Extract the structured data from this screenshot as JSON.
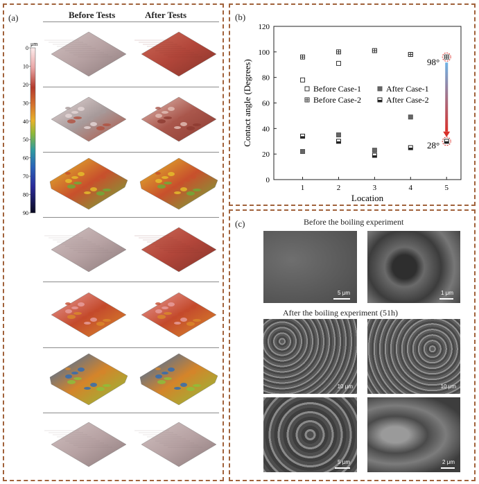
{
  "panel_a": {
    "label": "(a)",
    "col_before": "Before Tests",
    "col_after": "After Tests",
    "colorbar": {
      "unit": "μm",
      "ticks": [
        "0",
        "10",
        "20",
        "30",
        "40",
        "50",
        "60",
        "70",
        "80",
        "90"
      ]
    },
    "rows": [
      {
        "before": "flat",
        "after": "flat-red"
      },
      {
        "before": "bumpy-grey",
        "after": "bumpy-red"
      },
      {
        "before": "rough-yellow",
        "after": "rough-yellow"
      },
      {
        "before": "flat",
        "after": "flat-red"
      },
      {
        "before": "red-texture",
        "after": "red-texture"
      },
      {
        "before": "rough-blue",
        "after": "rough-blue"
      },
      {
        "before": "flat",
        "after": "flat"
      }
    ]
  },
  "panel_b": {
    "label": "(b)"
  },
  "chart_data": {
    "type": "scatter",
    "xlabel": "Location",
    "ylabel": "Contact angle (Degrees)",
    "xlim": [
      0.2,
      5.4
    ],
    "ylim": [
      0,
      120
    ],
    "xticks": [
      1,
      2,
      3,
      4,
      5
    ],
    "yticks": [
      0,
      20,
      40,
      60,
      80,
      100,
      120
    ],
    "legend_position": "center",
    "series": [
      {
        "name": "Before Case-1",
        "marker": "open-square",
        "x": [
          1,
          2,
          3,
          4
        ],
        "y": [
          78,
          91,
          101,
          98
        ]
      },
      {
        "name": "Before Case-2",
        "marker": "crossed-square",
        "x": [
          1,
          2,
          3,
          4,
          5
        ],
        "y": [
          96,
          100,
          101,
          98,
          96
        ]
      },
      {
        "name": "After Case-1",
        "marker": "filled-square",
        "x": [
          1,
          2,
          3,
          4
        ],
        "y": [
          22,
          35,
          23,
          49
        ]
      },
      {
        "name": "After Case-2",
        "marker": "half-square",
        "x": [
          1,
          2,
          3,
          4,
          5
        ],
        "y": [
          34,
          30,
          19,
          25,
          30
        ]
      }
    ],
    "annotations": [
      {
        "text": "98°",
        "x": 5,
        "y": 96
      },
      {
        "text": "28°",
        "x": 5,
        "y": 30
      }
    ],
    "arrow_colors": {
      "top": "#6fb3e6",
      "bottom": "#d9302a"
    }
  },
  "panel_c": {
    "label": "(c)",
    "title_before": "Before the boiling experiment",
    "title_after": "After the boiling experiment (51h)",
    "scales": [
      "5 μm",
      "1 μm",
      "10 μm",
      "10 μm",
      "5 μm",
      "2 μm"
    ]
  }
}
